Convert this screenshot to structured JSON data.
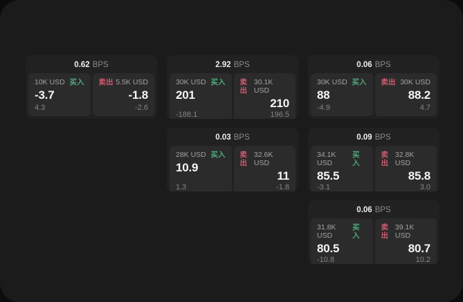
{
  "labels": {
    "bps": "BPS",
    "buy": "买入",
    "sell": "卖出"
  },
  "colors": {
    "page_bg": "#1b1b1b",
    "card_bg": "#212121",
    "tile_bg": "#2b2b2b",
    "buy_green": "#4fa97a",
    "sell_red": "#cf5b6e"
  },
  "cards": [
    {
      "bps": "0.62",
      "buy": {
        "amount": "10K USD",
        "value": "-3.7",
        "delta": "4.3"
      },
      "sell": {
        "amount": "5.5K USD",
        "value": "-1.8",
        "delta": "-2.6"
      }
    },
    {
      "bps": "2.92",
      "buy": {
        "amount": "30K USD",
        "value": "201",
        "delta": "-188.1"
      },
      "sell": {
        "amount": "30.1K USD",
        "value": "210",
        "delta": "196.5"
      }
    },
    {
      "bps": "0.06",
      "buy": {
        "amount": "30K USD",
        "value": "88",
        "delta": "-4.9"
      },
      "sell": {
        "amount": "30K USD",
        "value": "88.2",
        "delta": "4.7"
      }
    },
    {
      "bps": "0.03",
      "buy": {
        "amount": "28K USD",
        "value": "10.9",
        "delta": "1.3"
      },
      "sell": {
        "amount": "32.6K USD",
        "value": "11",
        "delta": "-1.8"
      }
    },
    {
      "bps": "0.09",
      "buy": {
        "amount": "34.1K USD",
        "value": "85.5",
        "delta": "-3.1"
      },
      "sell": {
        "amount": "32.8K USD",
        "value": "85.8",
        "delta": "3.0"
      }
    },
    {
      "bps": "0.06",
      "buy": {
        "amount": "31.8K USD",
        "value": "80.5",
        "delta": "-10.8"
      },
      "sell": {
        "amount": "39.1K USD",
        "value": "80.7",
        "delta": "10.2"
      }
    }
  ]
}
